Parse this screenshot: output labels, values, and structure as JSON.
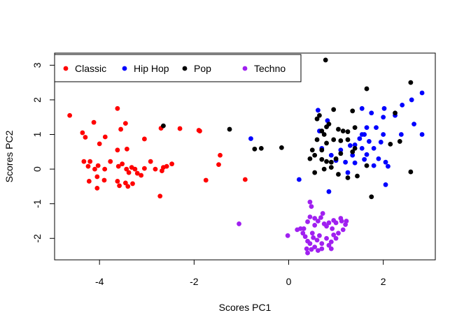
{
  "chart_data": {
    "type": "scatter",
    "title": "",
    "xlabel": "Scores PC1",
    "ylabel": "Scores PC2",
    "xlim": [
      -4.95,
      3.1
    ],
    "ylim": [
      -2.62,
      3.35
    ],
    "xticks": [
      -4,
      -2,
      0,
      2
    ],
    "yticks": [
      -2,
      -1,
      0,
      1,
      2,
      3
    ],
    "xtick_labels": [
      "-4",
      "-2",
      "0",
      "2"
    ],
    "ytick_labels": [
      "-2",
      "-1",
      "0",
      "1",
      "2",
      "3"
    ],
    "grid": false,
    "legend_position": "top-left",
    "series": [
      {
        "name": "Classic",
        "color": "#ff0000",
        "points": [
          [
            -4.63,
            1.55
          ],
          [
            -3.62,
            1.75
          ],
          [
            -4.36,
            1.05
          ],
          [
            -4.12,
            1.35
          ],
          [
            -3.45,
            1.32
          ],
          [
            -3.55,
            1.15
          ],
          [
            -2.7,
            1.18
          ],
          [
            -2.3,
            1.17
          ],
          [
            -1.88,
            1.1
          ],
          [
            -1.9,
            1.12
          ],
          [
            -4.3,
            0.92
          ],
          [
            -3.88,
            0.93
          ],
          [
            -3.05,
            0.87
          ],
          [
            -4.0,
            0.73
          ],
          [
            -3.42,
            0.58
          ],
          [
            -3.62,
            0.55
          ],
          [
            -1.45,
            0.4
          ],
          [
            -1.48,
            0.13
          ],
          [
            -4.33,
            0.22
          ],
          [
            -4.2,
            0.22
          ],
          [
            -4.24,
            0.08
          ],
          [
            -4.1,
            0.0
          ],
          [
            -4.03,
            0.1
          ],
          [
            -3.89,
            0.0
          ],
          [
            -3.77,
            0.22
          ],
          [
            -3.6,
            0.08
          ],
          [
            -3.52,
            0.15
          ],
          [
            -3.43,
            0.0
          ],
          [
            -3.38,
            -0.1
          ],
          [
            -3.32,
            0.05
          ],
          [
            -3.25,
            0.0
          ],
          [
            -3.2,
            -0.12
          ],
          [
            -3.12,
            -0.18
          ],
          [
            -3.05,
            0.02
          ],
          [
            -3.62,
            -0.35
          ],
          [
            -3.45,
            -0.4
          ],
          [
            -3.58,
            -0.48
          ],
          [
            -3.4,
            -0.5
          ],
          [
            -3.3,
            -0.42
          ],
          [
            -3.9,
            -0.32
          ],
          [
            -4.05,
            -0.22
          ],
          [
            -4.05,
            -0.55
          ],
          [
            -4.22,
            -0.35
          ],
          [
            -2.92,
            0.22
          ],
          [
            -2.82,
            0.0
          ],
          [
            -2.65,
            0.05
          ],
          [
            -2.58,
            0.08
          ],
          [
            -2.47,
            0.15
          ],
          [
            -2.68,
            -0.05
          ],
          [
            -2.72,
            -0.78
          ],
          [
            -1.75,
            -0.32
          ],
          [
            -0.92,
            -0.3
          ]
        ]
      },
      {
        "name": "Hip Hop",
        "color": "#0000ff",
        "points": [
          [
            2.82,
            2.2
          ],
          [
            2.6,
            2.0
          ],
          [
            2.4,
            1.85
          ],
          [
            2.25,
            1.55
          ],
          [
            2.02,
            1.75
          ],
          [
            1.55,
            1.75
          ],
          [
            1.75,
            1.62
          ],
          [
            2.0,
            1.5
          ],
          [
            2.65,
            1.3
          ],
          [
            2.82,
            1.0
          ],
          [
            2.38,
            1.0
          ],
          [
            1.65,
            1.2
          ],
          [
            1.85,
            1.2
          ],
          [
            1.6,
            1.0
          ],
          [
            2.0,
            1.0
          ],
          [
            1.5,
            0.88
          ],
          [
            1.7,
            0.8
          ],
          [
            1.95,
            0.78
          ],
          [
            1.4,
            0.7
          ],
          [
            1.55,
            0.6
          ],
          [
            1.8,
            0.6
          ],
          [
            1.3,
            0.68
          ],
          [
            1.1,
            0.55
          ],
          [
            1.35,
            0.4
          ],
          [
            1.65,
            0.42
          ],
          [
            1.9,
            0.3
          ],
          [
            2.05,
            0.2
          ],
          [
            2.1,
            0.08
          ],
          [
            1.6,
            0.28
          ],
          [
            1.8,
            0.1
          ],
          [
            1.4,
            0.18
          ],
          [
            1.2,
            0.2
          ],
          [
            1.0,
            0.25
          ],
          [
            0.9,
            0.4
          ],
          [
            0.7,
            0.6
          ],
          [
            0.65,
            1.1
          ],
          [
            0.62,
            1.7
          ],
          [
            0.82,
            1.4
          ],
          [
            1.25,
            -0.1
          ],
          [
            2.05,
            -0.45
          ],
          [
            0.85,
            -0.65
          ],
          [
            0.22,
            -0.3
          ],
          [
            -0.8,
            0.88
          ],
          [
            1.55,
            1.0
          ]
        ]
      },
      {
        "name": "Pop",
        "color": "#000000",
        "points": [
          [
            0.78,
            3.15
          ],
          [
            1.65,
            2.32
          ],
          [
            2.58,
            2.5
          ],
          [
            2.25,
            1.62
          ],
          [
            0.65,
            1.55
          ],
          [
            0.95,
            1.72
          ],
          [
            1.35,
            1.68
          ],
          [
            0.6,
            1.45
          ],
          [
            0.85,
            1.3
          ],
          [
            0.8,
            1.22
          ],
          [
            1.05,
            1.15
          ],
          [
            1.15,
            1.1
          ],
          [
            1.25,
            1.08
          ],
          [
            1.4,
            1.2
          ],
          [
            0.7,
            1.1
          ],
          [
            0.75,
            1.0
          ],
          [
            0.6,
            0.85
          ],
          [
            0.95,
            0.85
          ],
          [
            1.1,
            0.82
          ],
          [
            1.25,
            0.85
          ],
          [
            1.4,
            0.6
          ],
          [
            1.35,
            0.5
          ],
          [
            1.1,
            0.45
          ],
          [
            1.0,
            0.3
          ],
          [
            0.9,
            0.2
          ],
          [
            0.8,
            0.22
          ],
          [
            0.7,
            0.28
          ],
          [
            0.5,
            0.55
          ],
          [
            0.55,
            0.4
          ],
          [
            0.45,
            0.3
          ],
          [
            0.9,
            0.05
          ],
          [
            0.75,
            0.0
          ],
          [
            0.55,
            -0.1
          ],
          [
            1.05,
            -0.15
          ],
          [
            1.25,
            -0.25
          ],
          [
            1.45,
            -0.2
          ],
          [
            1.65,
            0.1
          ],
          [
            2.15,
            0.72
          ],
          [
            2.35,
            0.8
          ],
          [
            2.58,
            -0.08
          ],
          [
            1.75,
            -0.8
          ],
          [
            -2.65,
            1.25
          ],
          [
            -1.25,
            1.15
          ],
          [
            -0.72,
            0.58
          ],
          [
            -0.58,
            0.6
          ],
          [
            -0.15,
            0.62
          ],
          [
            0.8,
            0.75
          ],
          [
            0.7,
            0.55
          ]
        ]
      },
      {
        "name": "Techno",
        "color": "#a020f0",
        "points": [
          [
            0.45,
            -0.95
          ],
          [
            0.48,
            -1.08
          ],
          [
            0.72,
            -1.28
          ],
          [
            0.68,
            -1.4
          ],
          [
            0.55,
            -1.42
          ],
          [
            0.45,
            -1.38
          ],
          [
            0.4,
            -1.52
          ],
          [
            0.32,
            -1.72
          ],
          [
            0.25,
            -1.72
          ],
          [
            0.18,
            -1.75
          ],
          [
            0.55,
            -1.62
          ],
          [
            0.75,
            -1.58
          ],
          [
            0.8,
            -1.65
          ],
          [
            0.92,
            -1.72
          ],
          [
            1.0,
            -1.55
          ],
          [
            1.12,
            -1.5
          ],
          [
            1.2,
            -1.6
          ],
          [
            1.22,
            -1.5
          ],
          [
            1.1,
            -1.42
          ],
          [
            0.95,
            -1.48
          ],
          [
            0.85,
            -1.55
          ],
          [
            0.62,
            -1.5
          ],
          [
            0.5,
            -1.85
          ],
          [
            0.35,
            -1.95
          ],
          [
            0.4,
            -2.08
          ],
          [
            0.45,
            -2.15
          ],
          [
            0.55,
            -2.25
          ],
          [
            0.48,
            -2.32
          ],
          [
            0.38,
            -2.3
          ],
          [
            0.6,
            -2.05
          ],
          [
            0.7,
            -2.15
          ],
          [
            0.8,
            -2.0
          ],
          [
            0.9,
            -2.1
          ],
          [
            0.85,
            -2.2
          ],
          [
            0.7,
            -2.3
          ],
          [
            0.62,
            -2.35
          ],
          [
            0.95,
            -1.9
          ],
          [
            1.05,
            -1.85
          ],
          [
            1.15,
            -1.75
          ],
          [
            1.0,
            -2.0
          ],
          [
            0.9,
            -2.3
          ],
          [
            0.4,
            -2.42
          ],
          [
            0.52,
            -1.98
          ],
          [
            0.65,
            -1.92
          ],
          [
            -0.02,
            -1.92
          ],
          [
            -1.05,
            -1.58
          ],
          [
            0.3,
            -1.85
          ]
        ]
      }
    ]
  }
}
